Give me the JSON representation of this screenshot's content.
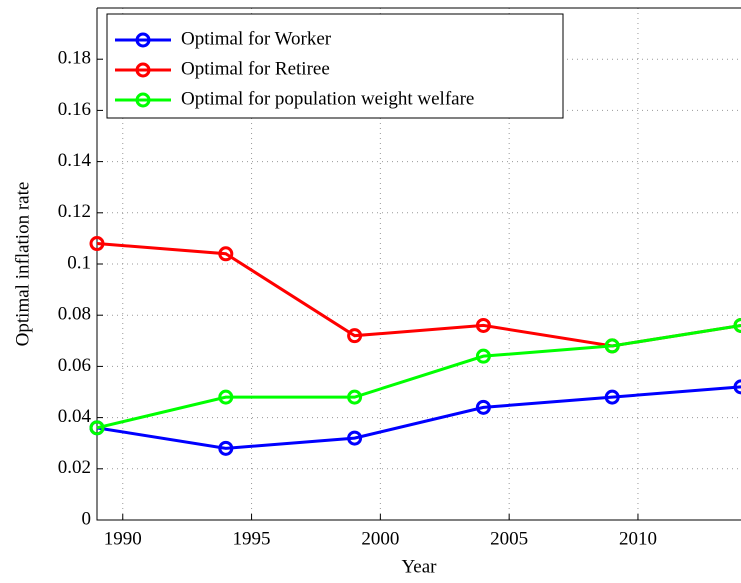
{
  "chart_data": {
    "type": "line",
    "x_label": "Year",
    "y_label": "Optimal inflation rate",
    "x": [
      1989,
      1994,
      1999,
      2004,
      2009,
      2014
    ],
    "series": [
      {
        "name": "Optimal for Worker",
        "color": "#0000ff",
        "values": [
          0.036,
          0.028,
          0.032,
          0.044,
          0.048,
          0.052
        ]
      },
      {
        "name": "Optimal for Retiree",
        "color": "#ff0000",
        "values": [
          0.108,
          0.104,
          0.072,
          0.076,
          0.068,
          0.076
        ]
      },
      {
        "name": "Optimal for population weight welfare",
        "color": "#00ff00",
        "values": [
          0.036,
          0.048,
          0.048,
          0.064,
          0.068,
          0.076
        ]
      }
    ],
    "xlim": [
      1989,
      2014
    ],
    "xticks": [
      1990,
      1995,
      2000,
      2005,
      2010
    ],
    "ylim": [
      0,
      0.2
    ],
    "yticks": [
      0,
      0.02,
      0.04,
      0.06,
      0.08,
      0.1,
      0.12,
      0.14,
      0.16,
      0.18
    ],
    "grid": true,
    "legend": "upper-left"
  }
}
